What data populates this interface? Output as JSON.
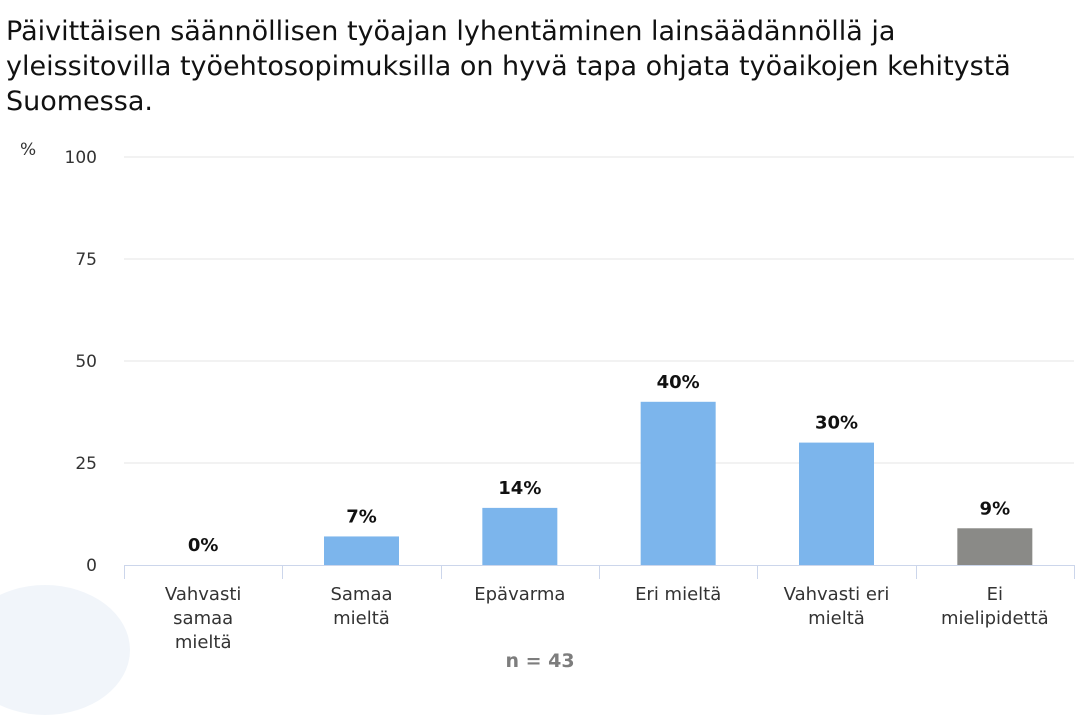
{
  "title": "Päivittäisen säännöllisen työajan lyhentäminen lainsäädännöllä ja yleissitovilla työehtosopimuksilla on hyvä tapa ohjata työaikojen kehitystä Suomessa.",
  "unit_label": "%",
  "footer_n": "n = 43",
  "colors": {
    "bar": "#7cb5ec",
    "bar_no_opinion": "#8a8a87",
    "grid": "#e6e6e6",
    "axis": "#ccd6eb"
  },
  "chart_data": {
    "type": "bar",
    "title": "Päivittäisen säännöllisen työajan lyhentäminen lainsäädännöllä ja yleissitovilla työehtosopimuksilla on hyvä tapa ohjata työaikojen kehitystä Suomessa.",
    "ylabel": "%",
    "ylim": [
      0,
      100
    ],
    "yticks": [
      0,
      25,
      50,
      75,
      100
    ],
    "grid": true,
    "legend": "none",
    "categories": [
      [
        "Vahvasti",
        "samaa",
        "mieltä"
      ],
      [
        "Samaa",
        "mieltä"
      ],
      [
        "Epävarma"
      ],
      [
        "Eri mieltä"
      ],
      [
        "Vahvasti eri",
        "mieltä"
      ],
      [
        "Ei",
        "mielipidettä"
      ]
    ],
    "values": [
      0,
      7,
      14,
      40,
      30,
      9
    ],
    "value_labels": [
      "0%",
      "7%",
      "14%",
      "40%",
      "30%",
      "9%"
    ],
    "bar_colors": [
      "#7cb5ec",
      "#7cb5ec",
      "#7cb5ec",
      "#7cb5ec",
      "#7cb5ec",
      "#8a8a87"
    ]
  }
}
